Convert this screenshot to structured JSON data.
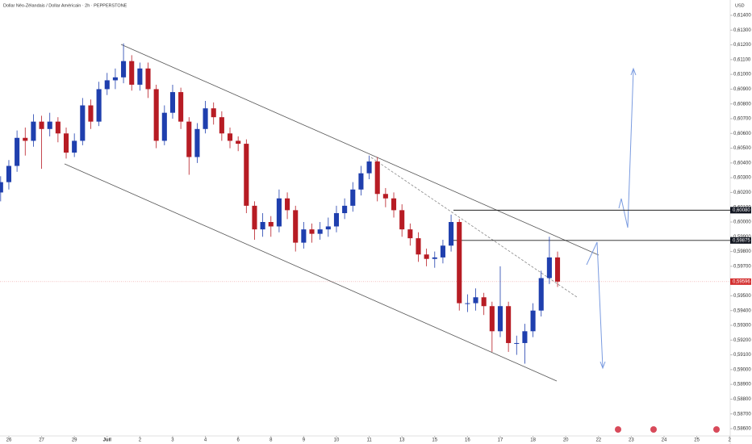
{
  "chart_data": {
    "type": "candlestick",
    "title": "Dollar Néo-Zélandais / Dollar Américain · 2h · PEPPERSTONE",
    "currency": "USD",
    "up_color": "#1f3fae",
    "down_color": "#b71c24",
    "x": [
      -0.25,
      0,
      0.25,
      0.5,
      0.75,
      1,
      1.25,
      1.5,
      1.75,
      2,
      2.25,
      2.5,
      2.75,
      3,
      3.25,
      3.5,
      3.75,
      4,
      4.25,
      4.5,
      4.75,
      5,
      5.25,
      5.5,
      5.75,
      6,
      6.25,
      6.5,
      6.75,
      7,
      7.25,
      7.5,
      7.75,
      8,
      8.25,
      8.5,
      8.75,
      9,
      9.25,
      9.5,
      9.75,
      10,
      10.25,
      10.5,
      10.75,
      11,
      11.25,
      11.5,
      11.75,
      12,
      12.25,
      12.5,
      12.75,
      13,
      13.25,
      13.5,
      13.75,
      14,
      14.25,
      14.5,
      14.75,
      15,
      15.25,
      15.5,
      15.75,
      16,
      16.25,
      16.5,
      16.75
    ],
    "open": [
      0.602,
      0.6027,
      0.6038,
      0.6057,
      0.6055,
      0.6068,
      0.6063,
      0.6068,
      0.606,
      0.6047,
      0.6055,
      0.6079,
      0.6068,
      0.609,
      0.6096,
      0.6098,
      0.6109,
      0.6093,
      0.6104,
      0.609,
      0.6055,
      0.6074,
      0.6088,
      0.6068,
      0.6044,
      0.6063,
      0.6077,
      0.6071,
      0.606,
      0.6055,
      0.6053,
      0.6011,
      0.5995,
      0.6,
      0.5997,
      0.6016,
      0.6008,
      0.5986,
      0.5995,
      0.5992,
      0.5995,
      0.5997,
      0.6006,
      0.6011,
      0.6022,
      0.6033,
      0.6041,
      0.6019,
      0.6016,
      0.6008,
      0.5995,
      0.5989,
      0.5978,
      0.5975,
      0.5976,
      0.5984,
      0.6,
      0.5945,
      0.5945,
      0.5949,
      0.5943,
      0.5926,
      0.5943,
      0.5918,
      0.5918,
      0.5926,
      0.594,
      0.5962,
      0.5976
    ],
    "high": [
      0.6031,
      0.6042,
      0.6062,
      0.6064,
      0.6073,
      0.6072,
      0.6074,
      0.6071,
      0.6064,
      0.606,
      0.6084,
      0.6083,
      0.6095,
      0.6101,
      0.6104,
      0.6121,
      0.6113,
      0.6108,
      0.6108,
      0.6093,
      0.6079,
      0.6093,
      0.6091,
      0.6071,
      0.6067,
      0.6082,
      0.6081,
      0.6075,
      0.6064,
      0.6058,
      0.6056,
      0.6014,
      0.6006,
      0.6004,
      0.6022,
      0.602,
      0.6011,
      0.6,
      0.5999,
      0.6,
      0.6003,
      0.6011,
      0.6016,
      0.6027,
      0.6038,
      0.6045,
      0.6044,
      0.6023,
      0.602,
      0.6012,
      0.5999,
      0.5993,
      0.5982,
      0.598,
      0.5988,
      0.6005,
      0.6002,
      0.5951,
      0.5955,
      0.5952,
      0.5946,
      0.597,
      0.5946,
      0.5923,
      0.5931,
      0.5945,
      0.5967,
      0.599,
      0.598
    ],
    "low": [
      0.6014,
      0.6022,
      0.6034,
      0.6045,
      0.6051,
      0.6036,
      0.6058,
      0.6054,
      0.6043,
      0.6044,
      0.6052,
      0.6063,
      0.6065,
      0.6086,
      0.609,
      0.6094,
      0.6089,
      0.6089,
      0.6084,
      0.605,
      0.6052,
      0.607,
      0.6063,
      0.6032,
      0.604,
      0.606,
      0.6066,
      0.6055,
      0.605,
      0.6048,
      0.6006,
      0.5988,
      0.599,
      0.599,
      0.5993,
      0.6002,
      0.598,
      0.5982,
      0.5986,
      0.5988,
      0.599,
      0.5993,
      0.6002,
      0.6007,
      0.6018,
      0.6029,
      0.6014,
      0.601,
      0.6003,
      0.599,
      0.5984,
      0.5973,
      0.597,
      0.5969,
      0.5972,
      0.598,
      0.594,
      0.5939,
      0.594,
      0.5937,
      0.5912,
      0.5922,
      0.5912,
      0.591,
      0.5904,
      0.5922,
      0.5936,
      0.5958,
      0.5956
    ],
    "close": [
      0.6027,
      0.6038,
      0.6057,
      0.6055,
      0.6068,
      0.6063,
      0.6068,
      0.606,
      0.6047,
      0.6055,
      0.6079,
      0.6068,
      0.609,
      0.6096,
      0.6098,
      0.6109,
      0.6093,
      0.6104,
      0.609,
      0.6055,
      0.6074,
      0.6088,
      0.6068,
      0.6044,
      0.6063,
      0.6077,
      0.6071,
      0.606,
      0.6055,
      0.6053,
      0.6011,
      0.5995,
      0.6,
      0.5997,
      0.6016,
      0.6008,
      0.5986,
      0.5995,
      0.5992,
      0.5995,
      0.5997,
      0.6006,
      0.6011,
      0.6022,
      0.6033,
      0.6041,
      0.6019,
      0.6016,
      0.6008,
      0.5995,
      0.5989,
      0.5978,
      0.5975,
      0.5976,
      0.5984,
      0.6,
      0.5945,
      0.5945,
      0.5949,
      0.5943,
      0.5926,
      0.5943,
      0.5918,
      0.5918,
      0.5926,
      0.594,
      0.5962,
      0.5976,
      0.59596
    ],
    "xlim": [
      -0.27,
      22.02
    ],
    "xticks": [
      {
        "value": 0,
        "label": "26"
      },
      {
        "value": 1,
        "label": "27"
      },
      {
        "value": 2,
        "label": "29"
      },
      {
        "value": 3,
        "label": "Juil"
      },
      {
        "value": 4,
        "label": "2"
      },
      {
        "value": 5,
        "label": "3"
      },
      {
        "value": 6,
        "label": "4"
      },
      {
        "value": 7,
        "label": "6"
      },
      {
        "value": 8,
        "label": "8"
      },
      {
        "value": 9,
        "label": "9"
      },
      {
        "value": 10,
        "label": "10"
      },
      {
        "value": 11,
        "label": "11"
      },
      {
        "value": 12,
        "label": "13"
      },
      {
        "value": 13,
        "label": "15"
      },
      {
        "value": 14,
        "label": "16"
      },
      {
        "value": 15,
        "label": "17"
      },
      {
        "value": 16,
        "label": "18"
      },
      {
        "value": 17,
        "label": "20"
      },
      {
        "value": 18,
        "label": "22"
      },
      {
        "value": 19,
        "label": "23"
      },
      {
        "value": 20,
        "label": "24"
      },
      {
        "value": 21,
        "label": "25"
      },
      {
        "value": 22,
        "label": "2"
      }
    ],
    "ylim": [
      0.586,
      0.614
    ],
    "yticks": [
      {
        "value": 0.614,
        "label": "0,61400"
      },
      {
        "value": 0.613,
        "label": "0,61300"
      },
      {
        "value": 0.612,
        "label": "0,61200"
      },
      {
        "value": 0.611,
        "label": "0,61100"
      },
      {
        "value": 0.61,
        "label": "0,61000"
      },
      {
        "value": 0.609,
        "label": "0,60900"
      },
      {
        "value": 0.608,
        "label": "0,60800"
      },
      {
        "value": 0.607,
        "label": "0,60700"
      },
      {
        "value": 0.606,
        "label": "0,60600"
      },
      {
        "value": 0.605,
        "label": "0,60500"
      },
      {
        "value": 0.604,
        "label": "0,60400"
      },
      {
        "value": 0.603,
        "label": "0,60300"
      },
      {
        "value": 0.602,
        "label": "0,60200"
      },
      {
        "value": 0.601,
        "label": "0,60100"
      },
      {
        "value": 0.6,
        "label": "0,60000"
      },
      {
        "value": 0.599,
        "label": "0,59900"
      },
      {
        "value": 0.598,
        "label": "0,59800"
      },
      {
        "value": 0.597,
        "label": "0,59700"
      },
      {
        "value": 0.596,
        "label": "0,59600"
      },
      {
        "value": 0.595,
        "label": "0,59500"
      },
      {
        "value": 0.594,
        "label": "0,59400"
      },
      {
        "value": 0.593,
        "label": "0,59300"
      },
      {
        "value": 0.592,
        "label": "0,59200"
      },
      {
        "value": 0.591,
        "label": "0,59100"
      },
      {
        "value": 0.59,
        "label": "0,59000"
      },
      {
        "value": 0.589,
        "label": "0,58900"
      },
      {
        "value": 0.588,
        "label": "0,58800"
      },
      {
        "value": 0.587,
        "label": "0,58700"
      },
      {
        "value": 0.586,
        "label": "0,58600"
      }
    ],
    "levels": [
      {
        "value": 0.6008,
        "label": "0,60080"
      },
      {
        "value": 0.59875,
        "label": "0,59875"
      }
    ],
    "last_price": {
      "value": 0.59596,
      "label": "0,59596"
    },
    "last_price_color": "#d32f2f"
  }
}
